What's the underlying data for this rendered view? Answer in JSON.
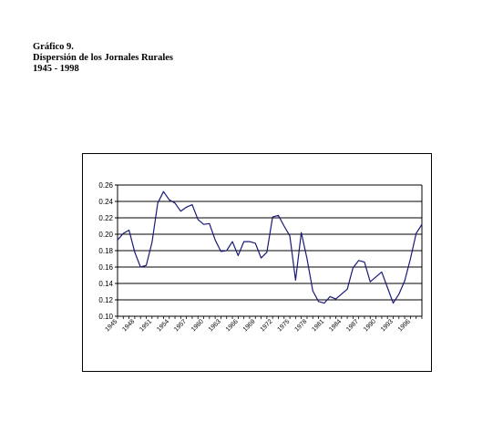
{
  "caption": {
    "line1": "Gráfico 9.",
    "line2": "Dispersión de los Jornales Rurales",
    "line3": "1945 - 1998"
  },
  "chart_data": {
    "type": "line",
    "title": "",
    "xlabel": "",
    "ylabel": "",
    "ylim": [
      0.1,
      0.26
    ],
    "yticks": [
      "0.10",
      "0.12",
      "0.14",
      "0.16",
      "0.18",
      "0.20",
      "0.22",
      "0.24",
      "0.26"
    ],
    "xlim": [
      1945,
      1998
    ],
    "xtick_years": [
      1945,
      1948,
      1951,
      1954,
      1957,
      1960,
      1963,
      1966,
      1969,
      1972,
      1975,
      1978,
      1981,
      1984,
      1987,
      1990,
      1993,
      1996
    ],
    "xtick_labels": [
      "1945",
      "1948",
      "1951",
      "1954",
      "1957",
      "1960",
      "1963",
      "1966",
      "1969",
      "1972",
      "1975",
      "1978",
      "1981",
      "1984",
      "1987",
      "1990",
      "1993",
      "1996"
    ],
    "grid": "horizontal",
    "line_color": "#1a1a78",
    "x": [
      1945,
      1946,
      1947,
      1948,
      1949,
      1950,
      1951,
      1952,
      1953,
      1954,
      1955,
      1956,
      1957,
      1958,
      1959,
      1960,
      1961,
      1962,
      1963,
      1964,
      1965,
      1966,
      1967,
      1968,
      1969,
      1970,
      1971,
      1972,
      1973,
      1974,
      1975,
      1976,
      1977,
      1978,
      1979,
      1980,
      1981,
      1982,
      1983,
      1984,
      1985,
      1986,
      1987,
      1988,
      1989,
      1990,
      1991,
      1992,
      1993,
      1994,
      1995,
      1996,
      1997,
      1998
    ],
    "y": [
      0.193,
      0.201,
      0.205,
      0.178,
      0.16,
      0.162,
      0.19,
      0.238,
      0.252,
      0.242,
      0.238,
      0.228,
      0.233,
      0.236,
      0.218,
      0.212,
      0.213,
      0.193,
      0.179,
      0.18,
      0.191,
      0.174,
      0.191,
      0.191,
      0.189,
      0.171,
      0.178,
      0.221,
      0.223,
      0.21,
      0.198,
      0.144,
      0.202,
      0.17,
      0.131,
      0.118,
      0.116,
      0.124,
      0.121,
      0.127,
      0.133,
      0.159,
      0.168,
      0.166,
      0.142,
      0.148,
      0.154,
      0.135,
      0.116,
      0.127,
      0.143,
      0.17,
      0.201,
      0.212
    ]
  }
}
